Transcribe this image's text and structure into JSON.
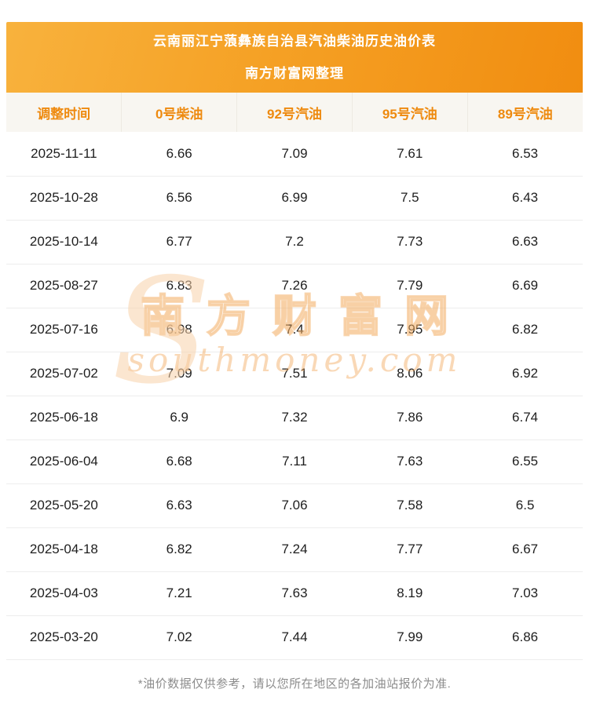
{
  "banner": {
    "title": "云南丽江宁蒗彝族自治县汽油柴油历史油价表",
    "subtitle": "南方财富网整理"
  },
  "table": {
    "columns": [
      "调整时间",
      "0号柴油",
      "92号汽油",
      "95号汽油",
      "89号汽油"
    ],
    "rows": [
      {
        "date": "2025-11-11",
        "values": [
          "6.66",
          "7.09",
          "7.61",
          "6.53"
        ]
      },
      {
        "date": "2025-10-28",
        "values": [
          "6.56",
          "6.99",
          "7.5",
          "6.43"
        ]
      },
      {
        "date": "2025-10-14",
        "values": [
          "6.77",
          "7.2",
          "7.73",
          "6.63"
        ]
      },
      {
        "date": "2025-08-27",
        "values": [
          "6.83",
          "7.26",
          "7.79",
          "6.69"
        ]
      },
      {
        "date": "2025-07-16",
        "values": [
          "6.98",
          "7.4",
          "7.95",
          "6.82"
        ]
      },
      {
        "date": "2025-07-02",
        "values": [
          "7.09",
          "7.51",
          "8.06",
          "6.92"
        ]
      },
      {
        "date": "2025-06-18",
        "values": [
          "6.9",
          "7.32",
          "7.86",
          "6.74"
        ]
      },
      {
        "date": "2025-06-04",
        "values": [
          "6.68",
          "7.11",
          "7.63",
          "6.55"
        ]
      },
      {
        "date": "2025-05-20",
        "values": [
          "6.63",
          "7.06",
          "7.58",
          "6.5"
        ]
      },
      {
        "date": "2025-04-18",
        "values": [
          "6.82",
          "7.24",
          "7.77",
          "6.67"
        ]
      },
      {
        "date": "2025-04-03",
        "values": [
          "7.21",
          "7.63",
          "8.19",
          "7.03"
        ]
      },
      {
        "date": "2025-03-20",
        "values": [
          "7.02",
          "7.44",
          "7.99",
          "6.86"
        ]
      }
    ]
  },
  "watermark": {
    "cn": "南方财富网",
    "en": "southmoney.com",
    "s_glyph": "S"
  },
  "footer": {
    "note": "*油价数据仅供参考，请以您所在地区的各加油站报价为准."
  },
  "colors": {
    "banner_gradient_start": "#f8b23d",
    "banner_gradient_end": "#f18d10",
    "header_row_bg": "#f8f6f1",
    "header_text": "#ee8a0f",
    "row_divider": "#ededed",
    "body_text": "#1e1e1e",
    "footer_text": "#8c8c8c",
    "watermark_orange": "#f1a352"
  }
}
